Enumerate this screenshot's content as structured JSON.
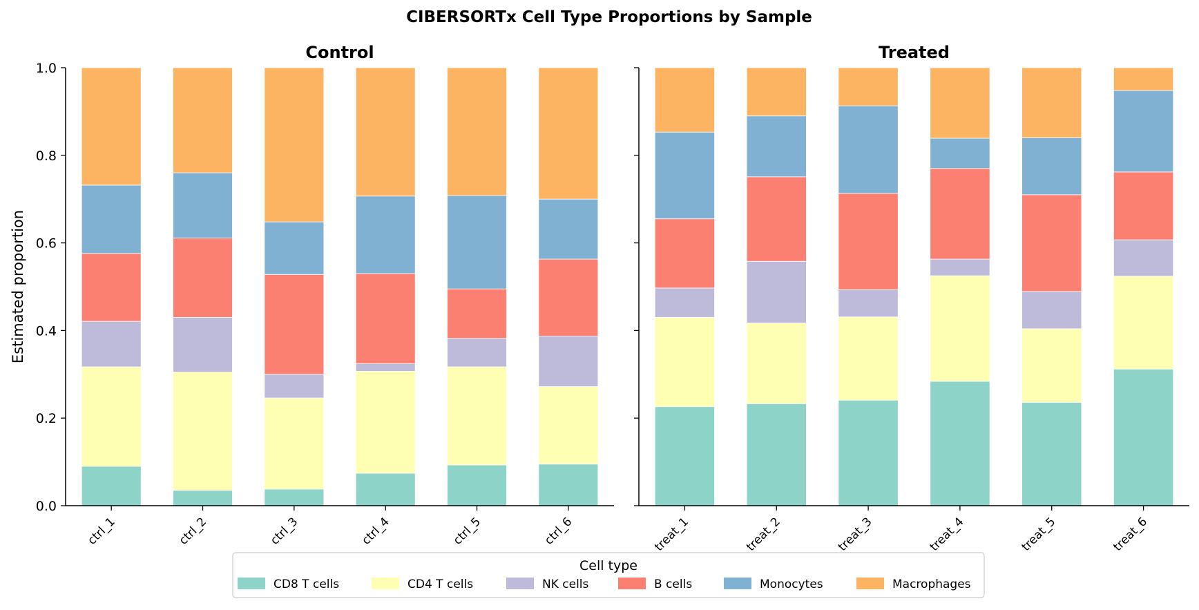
{
  "chart_data": {
    "type": "bar",
    "stacked": true,
    "title": "CIBERSORTx Cell Type Proportions by Sample",
    "ylabel": "Estimated proportion",
    "ylim": [
      0,
      1.0
    ],
    "yticks": [
      "0.0",
      "0.2",
      "0.4",
      "0.6",
      "0.8",
      "1.0"
    ],
    "sharey": true,
    "legend": {
      "title": "Cell type",
      "placement": "bottom-center",
      "entries": [
        "CD8 T cells",
        "CD4 T cells",
        "NK cells",
        "B cells",
        "Monocytes",
        "Macrophages"
      ]
    },
    "colors": {
      "CD8 T cells": "#8dd3c7",
      "CD4 T cells": "#ffffb3",
      "NK cells": "#bebada",
      "B cells": "#fb8072",
      "Monocytes": "#80b1d3",
      "Macrophages": "#fdb462"
    },
    "panels": [
      {
        "title": "Control",
        "categories": [
          "ctrl_1",
          "ctrl_2",
          "ctrl_3",
          "ctrl_4",
          "ctrl_5",
          "ctrl_6"
        ],
        "series": [
          {
            "name": "CD8 T cells",
            "values": [
              0.09,
              0.035,
              0.038,
              0.074,
              0.093,
              0.095
            ]
          },
          {
            "name": "CD4 T cells",
            "values": [
              0.227,
              0.27,
              0.208,
              0.233,
              0.224,
              0.177
            ]
          },
          {
            "name": "NK cells",
            "values": [
              0.104,
              0.125,
              0.054,
              0.017,
              0.065,
              0.115
            ]
          },
          {
            "name": "B cells",
            "values": [
              0.155,
              0.181,
              0.228,
              0.206,
              0.113,
              0.176
            ]
          },
          {
            "name": "Monocytes",
            "values": [
              0.156,
              0.149,
              0.12,
              0.177,
              0.213,
              0.137
            ]
          },
          {
            "name": "Macrophages",
            "values": [
              0.268,
              0.24,
              0.352,
              0.293,
              0.292,
              0.3
            ]
          }
        ]
      },
      {
        "title": "Treated",
        "categories": [
          "treat_1",
          "treat_2",
          "treat_3",
          "treat_4",
          "treat_5",
          "treat_6"
        ],
        "series": [
          {
            "name": "CD8 T cells",
            "values": [
              0.226,
              0.233,
              0.241,
              0.284,
              0.236,
              0.312
            ]
          },
          {
            "name": "CD4 T cells",
            "values": [
              0.204,
              0.184,
              0.19,
              0.241,
              0.168,
              0.212
            ]
          },
          {
            "name": "NK cells",
            "values": [
              0.067,
              0.141,
              0.062,
              0.038,
              0.085,
              0.083
            ]
          },
          {
            "name": "B cells",
            "values": [
              0.158,
              0.193,
              0.22,
              0.207,
              0.221,
              0.155
            ]
          },
          {
            "name": "Monocytes",
            "values": [
              0.198,
              0.139,
              0.2,
              0.069,
              0.13,
              0.186
            ]
          },
          {
            "name": "Macrophages",
            "values": [
              0.147,
              0.11,
              0.087,
              0.161,
              0.16,
              0.052
            ]
          }
        ]
      }
    ]
  }
}
